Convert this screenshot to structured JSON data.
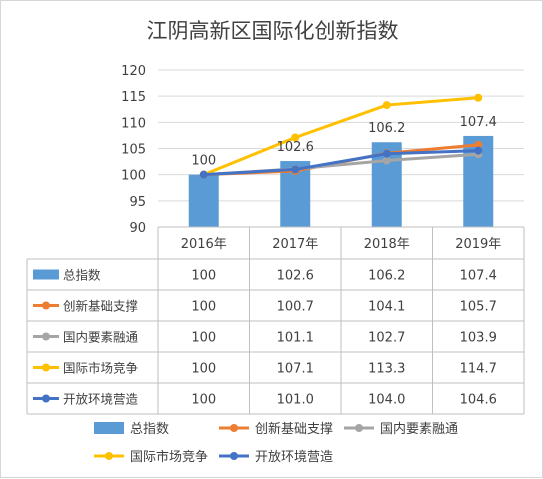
{
  "chart_data": {
    "type": "bar+line",
    "title": "江阴高新区国际化创新指数",
    "categories": [
      "2016年",
      "2017年",
      "2018年",
      "2019年"
    ],
    "ylim": [
      90,
      120
    ],
    "yticks": [
      "90",
      "95",
      "100",
      "105",
      "110",
      "115",
      "120"
    ],
    "grid": true,
    "legend_position": "bottom",
    "bar_series": {
      "name": "总指数",
      "color": "#5b9bd5",
      "values": [
        100,
        102.6,
        106.2,
        107.4
      ],
      "data_labels": [
        "100",
        "102.6",
        "106.2",
        "107.4"
      ]
    },
    "line_series": [
      {
        "name": "创新基础支撑",
        "color": "#ed7d31",
        "values": [
          100,
          100.7,
          104.1,
          105.7
        ]
      },
      {
        "name": "国内要素融通",
        "color": "#a5a5a5",
        "values": [
          100,
          101.1,
          102.7,
          103.9
        ]
      },
      {
        "name": "国际市场竞争",
        "color": "#ffc000",
        "values": [
          100,
          107.1,
          113.3,
          114.7
        ]
      },
      {
        "name": "开放环境营造",
        "color": "#4472c4",
        "values": [
          100,
          101.0,
          104.0,
          104.6
        ]
      }
    ],
    "table": {
      "rows": [
        {
          "name": "总指数",
          "cells": [
            "100",
            "102.6",
            "106.2",
            "107.4"
          ]
        },
        {
          "name": "创新基础支撑",
          "cells": [
            "100",
            "100.7",
            "104.1",
            "105.7"
          ]
        },
        {
          "name": "国内要素融通",
          "cells": [
            "100",
            "101.1",
            "102.7",
            "103.9"
          ]
        },
        {
          "name": "国际市场竞争",
          "cells": [
            "100",
            "107.1",
            "113.3",
            "114.7"
          ]
        },
        {
          "name": "开放环境营造",
          "cells": [
            "100",
            "101.0",
            "104.0",
            "104.6"
          ]
        }
      ]
    }
  }
}
